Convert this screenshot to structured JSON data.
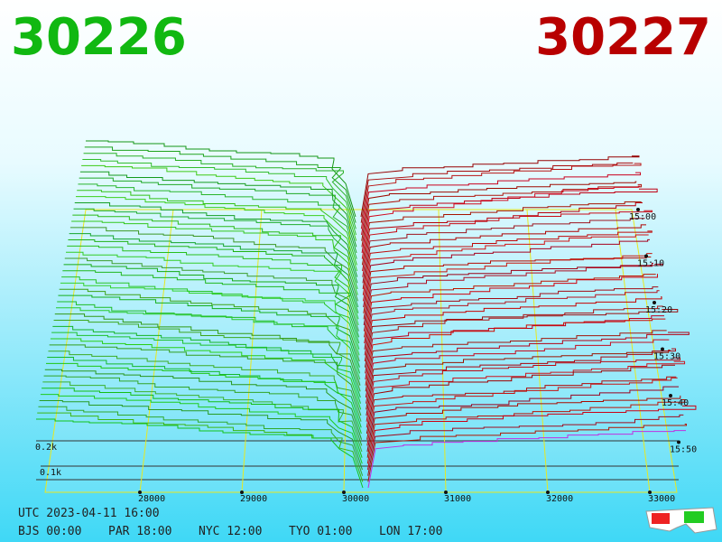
{
  "header": {
    "bid": "30226",
    "ask": "30227"
  },
  "price_axis": [
    "28000",
    "29000",
    "30000",
    "31000",
    "32000",
    "33000"
  ],
  "depth_axis": [
    "0.1k",
    "0.2k"
  ],
  "time_axis": [
    "15:00",
    "15:10",
    "15:20",
    "15:30",
    "15:40",
    "15:50"
  ],
  "footer": {
    "utc": "UTC 2023-04-11 16:00",
    "zones": [
      "BJS 00:00",
      "PAR 18:00",
      "NYC 12:00",
      "TYO 01:00",
      "LON 17:00"
    ]
  }
}
